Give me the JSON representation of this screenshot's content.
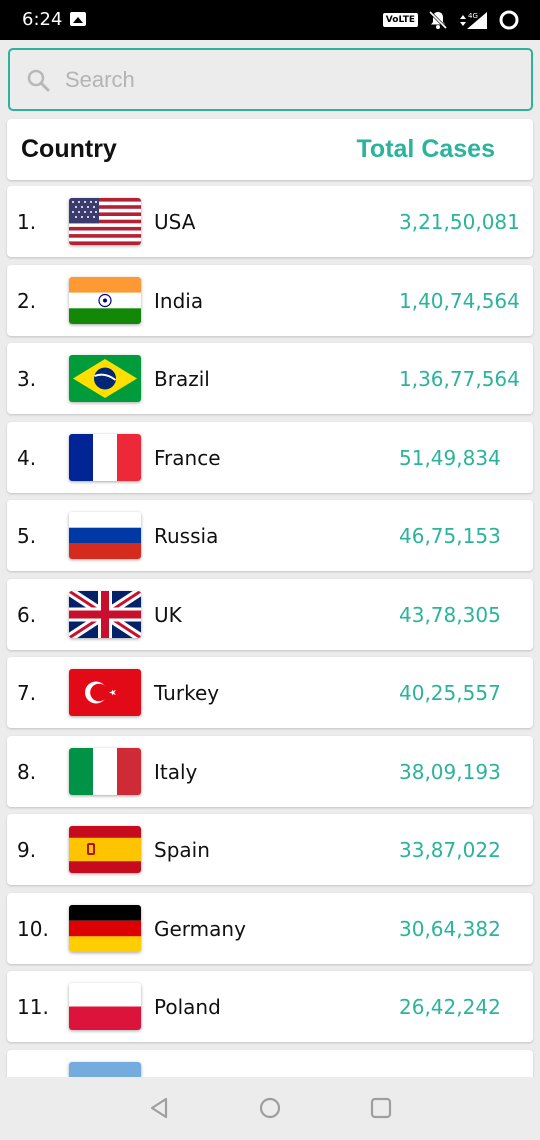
{
  "status_bar": {
    "time": "6:24",
    "volte": "VoLTE",
    "icons": [
      "gallery-icon",
      "bell-off-icon",
      "signal-4g-icon",
      "battery-ring-icon"
    ]
  },
  "search": {
    "placeholder": "Search",
    "value": ""
  },
  "header": {
    "country_label": "Country",
    "cases_label": "Total Cases"
  },
  "colors": {
    "accent": "#2bb39b",
    "background": "#ececec",
    "card": "#ffffff"
  },
  "countries": [
    {
      "rank": "1.",
      "name": "USA",
      "cases": "3,21,50,081",
      "flag": "usa-flag-icon"
    },
    {
      "rank": "2.",
      "name": "India",
      "cases": "1,40,74,564",
      "flag": "india-flag-icon"
    },
    {
      "rank": "3.",
      "name": "Brazil",
      "cases": "1,36,77,564",
      "flag": "brazil-flag-icon"
    },
    {
      "rank": "4.",
      "name": "France",
      "cases": "51,49,834",
      "flag": "france-flag-icon"
    },
    {
      "rank": "5.",
      "name": "Russia",
      "cases": "46,75,153",
      "flag": "russia-flag-icon"
    },
    {
      "rank": "6.",
      "name": "UK",
      "cases": "43,78,305",
      "flag": "uk-flag-icon"
    },
    {
      "rank": "7.",
      "name": "Turkey",
      "cases": "40,25,557",
      "flag": "turkey-flag-icon"
    },
    {
      "rank": "8.",
      "name": "Italy",
      "cases": "38,09,193",
      "flag": "italy-flag-icon"
    },
    {
      "rank": "9.",
      "name": "Spain",
      "cases": "33,87,022",
      "flag": "spain-flag-icon"
    },
    {
      "rank": "10.",
      "name": "Germany",
      "cases": "30,64,382",
      "flag": "germany-flag-icon"
    },
    {
      "rank": "11.",
      "name": "Poland",
      "cases": "26,42,242",
      "flag": "poland-flag-icon"
    },
    {
      "flag": "argentina-flag-icon"
    }
  ],
  "nav": {
    "icons": [
      "back-icon",
      "home-icon",
      "recents-icon"
    ]
  }
}
